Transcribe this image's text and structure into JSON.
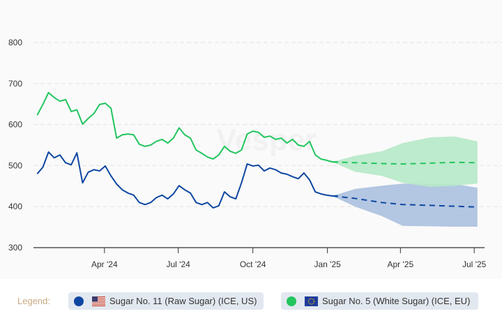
{
  "chart_data": {
    "type": "line",
    "title": "",
    "xlabel": "",
    "ylabel": "",
    "ylim": [
      300,
      800
    ],
    "yticks": [
      300,
      400,
      500,
      600,
      700,
      800
    ],
    "xlim": [
      "2024-01-01",
      "2025-07-10"
    ],
    "xticks": [
      {
        "date": "2024-04-01",
        "label": "Apr '24"
      },
      {
        "date": "2024-07-01",
        "label": "Jul '24"
      },
      {
        "date": "2024-10-01",
        "label": "Oct '24"
      },
      {
        "date": "2025-01-01",
        "label": "Jan '25"
      },
      {
        "date": "2025-04-01",
        "label": "Apr '25"
      },
      {
        "date": "2025-07-01",
        "label": "Jul '25"
      }
    ],
    "grid": true,
    "legend_position": "bottom",
    "watermark": "Vesper",
    "history_start": "2024-01-09",
    "history_interval_days": 7,
    "forecast_dates": [
      "2025-01-07",
      "2025-02-04",
      "2025-03-09",
      "2025-04-04",
      "2025-05-08",
      "2025-06-07",
      "2025-07-05"
    ],
    "series": [
      {
        "name": "Sugar No. 11 (Raw Sugar) (ICE, US)",
        "color": "#0d47a1",
        "band_color": "#afc3e0",
        "flag": "us-flag-icon",
        "values": [
          480,
          496,
          533,
          519,
          526,
          507,
          502,
          531,
          458,
          484,
          490,
          487,
          499,
          475,
          455,
          441,
          433,
          428,
          410,
          405,
          410,
          422,
          428,
          419,
          431,
          451,
          441,
          433,
          410,
          405,
          410,
          397,
          402,
          436,
          424,
          419,
          458,
          504,
          499,
          501,
          487,
          494,
          490,
          482,
          479,
          473,
          468,
          482,
          465,
          436,
          431,
          428,
          426,
          426
        ],
        "forecast": [
          426,
          420,
          410,
          405,
          403,
          401,
          399
        ],
        "forecast_upper": [
          426,
          443,
          451,
          456,
          456,
          455,
          446
        ],
        "forecast_lower": [
          426,
          400,
          377,
          353,
          352,
          351,
          351
        ]
      },
      {
        "name": "Sugar No. 5 (White Sugar) (ICE, EU)",
        "color": "#22c55e",
        "band_color": "#b6e9c8",
        "flag": "eu-flag-icon",
        "values": [
          623,
          649,
          678,
          666,
          657,
          661,
          632,
          636,
          601,
          615,
          627,
          649,
          652,
          640,
          567,
          575,
          577,
          575,
          552,
          547,
          550,
          559,
          564,
          555,
          567,
          592,
          575,
          567,
          538,
          530,
          521,
          516,
          526,
          547,
          535,
          530,
          538,
          577,
          584,
          581,
          569,
          572,
          564,
          567,
          555,
          564,
          550,
          547,
          559,
          526,
          516,
          513,
          509,
          509
        ],
        "forecast": [
          509,
          507,
          505,
          504,
          506,
          508,
          507
        ],
        "forecast_upper": [
          509,
          524,
          535,
          555,
          569,
          571,
          559
        ],
        "forecast_lower": [
          509,
          485,
          475,
          458,
          448,
          451,
          456
        ]
      }
    ]
  },
  "legend": {
    "title": "Legend:",
    "items": [
      {
        "label": "Sugar No. 11 (Raw Sugar) (ICE, US)"
      },
      {
        "label": "Sugar No. 5 (White Sugar) (ICE, EU)"
      }
    ]
  }
}
